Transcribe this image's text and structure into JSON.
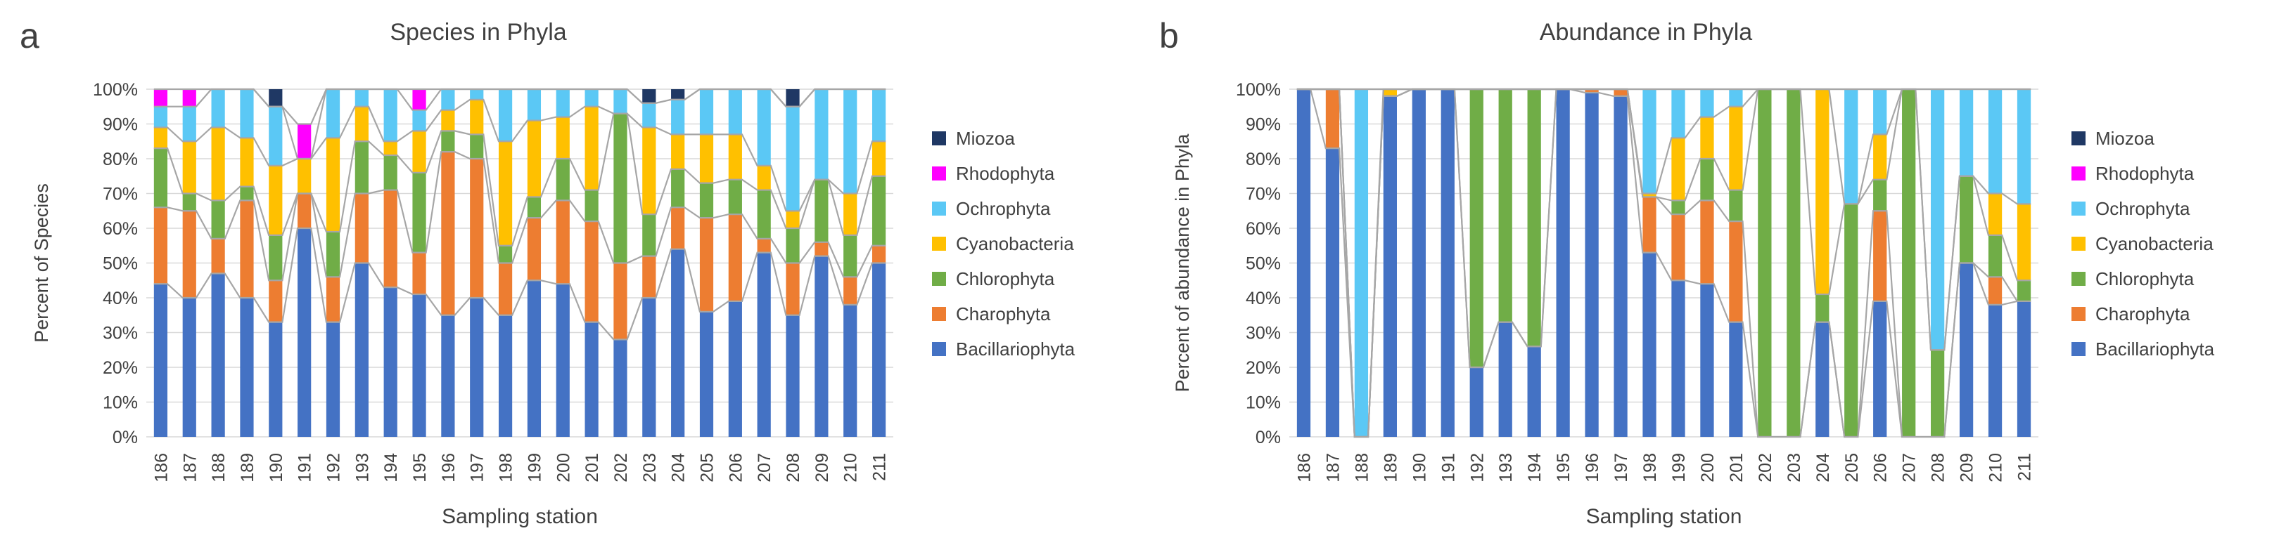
{
  "panels": {
    "a": {
      "letter": "a"
    },
    "b": {
      "letter": "b"
    }
  },
  "chart_data": [
    {
      "type": "bar",
      "stacked": "percent",
      "title": "Species in Phyla",
      "xlabel": "Sampling station",
      "ylabel": "Percent of Species",
      "ylim": [
        0,
        100
      ],
      "ytick_labels": [
        "0%",
        "10%",
        "20%",
        "30%",
        "40%",
        "50%",
        "60%",
        "70%",
        "80%",
        "90%",
        "100%"
      ],
      "categories": [
        "186",
        "187",
        "188",
        "189",
        "190",
        "191",
        "192",
        "193",
        "194",
        "195",
        "196",
        "197",
        "198",
        "199",
        "200",
        "201",
        "202",
        "203",
        "204",
        "205",
        "206",
        "207",
        "208",
        "209",
        "210",
        "211"
      ],
      "legend_position": "right",
      "series": [
        {
          "name": "Bacillariophyta",
          "color": "#4472C4",
          "values": [
            44,
            40,
            47,
            40,
            33,
            60,
            33,
            50,
            43,
            41,
            35,
            40,
            35,
            45,
            44,
            33,
            28,
            40,
            54,
            36,
            39,
            53,
            35,
            52,
            38,
            50
          ]
        },
        {
          "name": "Charophyta",
          "color": "#ED7D31",
          "values": [
            22,
            25,
            10,
            28,
            12,
            10,
            13,
            20,
            28,
            12,
            47,
            40,
            15,
            18,
            24,
            29,
            22,
            12,
            12,
            27,
            25,
            4,
            15,
            4,
            8,
            5
          ]
        },
        {
          "name": "Chlorophyta",
          "color": "#70AD47",
          "values": [
            17,
            5,
            11,
            4,
            13,
            0,
            13,
            15,
            10,
            23,
            6,
            7,
            5,
            6,
            12,
            9,
            43,
            12,
            11,
            10,
            10,
            14,
            10,
            18,
            12,
            20
          ]
        },
        {
          "name": "Cyanobacteria",
          "color": "#FFC000",
          "values": [
            6,
            15,
            21,
            14,
            20,
            10,
            27,
            10,
            4,
            12,
            6,
            10,
            30,
            22,
            12,
            24,
            0,
            25,
            10,
            14,
            13,
            7,
            5,
            0,
            12,
            10
          ]
        },
        {
          "name": "Ochrophyta",
          "color": "#5BC8F5",
          "values": [
            6,
            10,
            11,
            14,
            17,
            0,
            14,
            5,
            15,
            6,
            6,
            3,
            15,
            9,
            8,
            5,
            7,
            7,
            10,
            13,
            13,
            22,
            30,
            26,
            30,
            15
          ]
        },
        {
          "name": "Rhodophyta",
          "color": "#FF00FF",
          "values": [
            5,
            5,
            0,
            0,
            0,
            10,
            0,
            0,
            0,
            6,
            0,
            0,
            0,
            0,
            0,
            0,
            0,
            0,
            0,
            0,
            0,
            0,
            0,
            0,
            0,
            0
          ]
        },
        {
          "name": "Miozoa",
          "color": "#1F3864",
          "values": [
            0,
            0,
            0,
            0,
            5,
            0,
            0,
            0,
            0,
            0,
            0,
            0,
            0,
            0,
            0,
            0,
            0,
            4,
            3,
            0,
            0,
            0,
            5,
            0,
            0,
            0
          ]
        }
      ]
    },
    {
      "type": "bar",
      "stacked": "percent",
      "title": "Abundance in Phyla",
      "xlabel": "Sampling station",
      "ylabel": "Percent of abundance in Phyla",
      "ylim": [
        0,
        100
      ],
      "ytick_labels": [
        "0%",
        "10%",
        "20%",
        "30%",
        "40%",
        "50%",
        "60%",
        "70%",
        "80%",
        "90%",
        "100%"
      ],
      "categories": [
        "186",
        "187",
        "188",
        "189",
        "190",
        "191",
        "192",
        "193",
        "194",
        "195",
        "196",
        "197",
        "198",
        "199",
        "200",
        "201",
        "202",
        "203",
        "204",
        "205",
        "206",
        "207",
        "208",
        "209",
        "210",
        "211"
      ],
      "legend_position": "right",
      "series": [
        {
          "name": "Bacillariophyta",
          "color": "#4472C4",
          "values": [
            100,
            83,
            0,
            98,
            100,
            100,
            20,
            33,
            26,
            100,
            99,
            98,
            53,
            45,
            44,
            33,
            0,
            0,
            33,
            0,
            39,
            0,
            0,
            50,
            38,
            39
          ]
        },
        {
          "name": "Charophyta",
          "color": "#ED7D31",
          "values": [
            0,
            17,
            0,
            0,
            0,
            0,
            0,
            0,
            0,
            0,
            1,
            2,
            16,
            19,
            24,
            29,
            0,
            0,
            0,
            0,
            26,
            0,
            0,
            0,
            8,
            0
          ]
        },
        {
          "name": "Chlorophyta",
          "color": "#70AD47",
          "values": [
            0,
            0,
            0,
            0,
            0,
            0,
            80,
            67,
            74,
            0,
            0,
            0,
            0,
            4,
            12,
            9,
            100,
            100,
            8,
            67,
            9,
            100,
            25,
            25,
            12,
            6
          ]
        },
        {
          "name": "Cyanobacteria",
          "color": "#FFC000",
          "values": [
            0,
            0,
            0,
            2,
            0,
            0,
            0,
            0,
            0,
            0,
            0,
            0,
            1,
            18,
            12,
            24,
            0,
            0,
            59,
            0,
            13,
            0,
            0,
            0,
            12,
            22
          ]
        },
        {
          "name": "Ochrophyta",
          "color": "#5BC8F5",
          "values": [
            0,
            0,
            100,
            0,
            0,
            0,
            0,
            0,
            0,
            0,
            0,
            0,
            30,
            14,
            8,
            5,
            0,
            0,
            0,
            33,
            13,
            0,
            75,
            25,
            30,
            33
          ]
        },
        {
          "name": "Rhodophyta",
          "color": "#FF00FF",
          "values": [
            0,
            0,
            0,
            0,
            0,
            0,
            0,
            0,
            0,
            0,
            0,
            0,
            0,
            0,
            0,
            0,
            0,
            0,
            0,
            0,
            0,
            0,
            0,
            0,
            0,
            0
          ]
        },
        {
          "name": "Miozoa",
          "color": "#1F3864",
          "values": [
            0,
            0,
            0,
            0,
            0,
            0,
            0,
            0,
            0,
            0,
            0,
            0,
            0,
            0,
            0,
            0,
            0,
            0,
            0,
            0,
            0,
            0,
            0,
            0,
            0,
            0
          ]
        }
      ]
    }
  ]
}
